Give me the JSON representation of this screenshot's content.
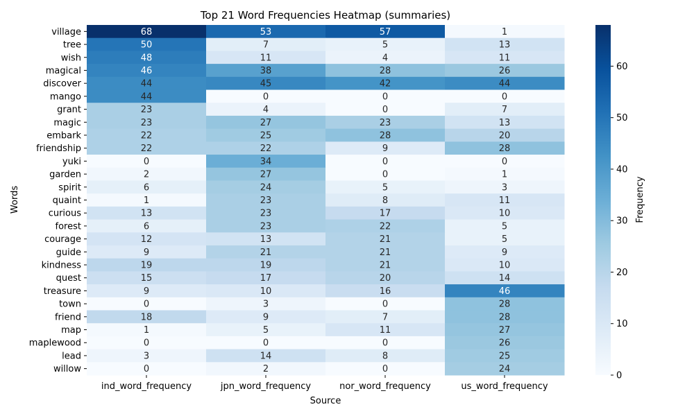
{
  "chart_data": {
    "type": "heatmap",
    "title": "Top 21 Word Frequencies Heatmap (summaries)",
    "xlabel": "Source",
    "ylabel": "Words",
    "colorbar_label": "Frequency",
    "colormap": "Blues",
    "vmin": 0,
    "vmax": 68,
    "colorbar_ticks": [
      0,
      10,
      20,
      30,
      40,
      50,
      60
    ],
    "columns": [
      "ind_word_frequency",
      "jpn_word_frequency",
      "nor_word_frequency",
      "us_word_frequency"
    ],
    "rows": [
      "village",
      "tree",
      "wish",
      "magical",
      "discover",
      "mango",
      "grant",
      "magic",
      "embark",
      "friendship",
      "yuki",
      "garden",
      "spirit",
      "quaint",
      "curious",
      "forest",
      "courage",
      "guide",
      "kindness",
      "quest",
      "treasure",
      "town",
      "friend",
      "map",
      "maplewood",
      "lead",
      "willow"
    ],
    "values": [
      [
        68,
        53,
        57,
        1
      ],
      [
        50,
        7,
        5,
        13
      ],
      [
        48,
        11,
        4,
        11
      ],
      [
        46,
        38,
        28,
        26
      ],
      [
        44,
        45,
        42,
        44
      ],
      [
        44,
        0,
        0,
        0
      ],
      [
        23,
        4,
        0,
        7
      ],
      [
        23,
        27,
        23,
        13
      ],
      [
        22,
        25,
        28,
        20
      ],
      [
        22,
        22,
        9,
        28
      ],
      [
        0,
        34,
        0,
        0
      ],
      [
        2,
        27,
        0,
        1
      ],
      [
        6,
        24,
        5,
        3
      ],
      [
        1,
        23,
        8,
        11
      ],
      [
        13,
        23,
        17,
        10
      ],
      [
        6,
        23,
        22,
        5
      ],
      [
        12,
        13,
        21,
        5
      ],
      [
        9,
        21,
        21,
        9
      ],
      [
        19,
        19,
        21,
        10
      ],
      [
        15,
        17,
        20,
        14
      ],
      [
        9,
        10,
        16,
        46
      ],
      [
        0,
        3,
        0,
        28
      ],
      [
        18,
        9,
        7,
        28
      ],
      [
        1,
        5,
        11,
        27
      ],
      [
        0,
        0,
        0,
        26
      ],
      [
        3,
        14,
        8,
        25
      ],
      [
        0,
        2,
        0,
        24
      ]
    ]
  }
}
